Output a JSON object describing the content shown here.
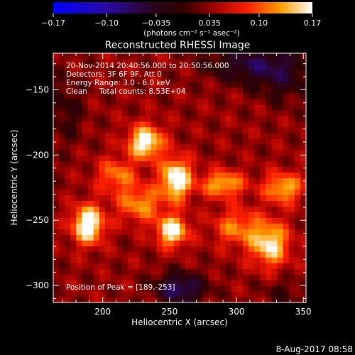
{
  "chart_data": {
    "type": "heatmap",
    "title": "Reconstructed RHESSI Image",
    "xlabel": "Heliocentric X (arcsec)",
    "ylabel": "Heliocentric Y (arcsec)",
    "xlim": [
      163,
      352
    ],
    "ylim": [
      -313,
      -122
    ],
    "x_ticks": [
      200,
      250,
      300,
      350
    ],
    "y_ticks": [
      -150,
      -200,
      -250,
      -300
    ],
    "x_tick_labels": [
      "200",
      "250",
      "300",
      "350"
    ],
    "y_tick_labels": [
      "−150",
      "−200",
      "−250",
      "−300"
    ],
    "colorbar": {
      "min": -0.17,
      "max": 0.17,
      "ticks": [
        -0.17,
        -0.1,
        -0.035,
        0.035,
        0.1,
        0.17
      ],
      "tick_labels": [
        "−0.17",
        "−0.10",
        "−0.035",
        "0.035",
        "0.10",
        "0.17"
      ],
      "unit_label": "(photons cm⁻² s⁻¹ asec⁻²)"
    },
    "annotations": [
      "20-Nov-2014 20:40:56.000 to 20:50:56.000",
      "Detectors: 3F 6F 9F, Att 0",
      "Energy Range: 3.0 - 6.0 keV",
      "Clean     Total counts: 8.53E+04"
    ],
    "peak_label": "Position of Peak = [189,-253]",
    "peak": [
      189,
      -253
    ],
    "sources": [
      {
        "x": 189,
        "y": -253,
        "amp": 0.17,
        "sx": 8,
        "sy": 10
      },
      {
        "x": 232,
        "y": -190,
        "amp": 0.15,
        "sx": 9,
        "sy": 9
      },
      {
        "x": 255,
        "y": -218,
        "amp": 0.16,
        "sx": 8,
        "sy": 11
      },
      {
        "x": 252,
        "y": -258,
        "amp": 0.15,
        "sx": 8,
        "sy": 8
      },
      {
        "x": 290,
        "y": -222,
        "amp": 0.11,
        "sx": 11,
        "sy": 7
      },
      {
        "x": 325,
        "y": -268,
        "amp": 0.13,
        "sx": 10,
        "sy": 12
      },
      {
        "x": 335,
        "y": -225,
        "amp": 0.11,
        "sx": 10,
        "sy": 8
      },
      {
        "x": 228,
        "y": -237,
        "amp": 0.09,
        "sx": 12,
        "sy": 10
      },
      {
        "x": 210,
        "y": -215,
        "amp": 0.08,
        "sx": 10,
        "sy": 9
      },
      {
        "x": 300,
        "y": -255,
        "amp": 0.08,
        "sx": 12,
        "sy": 10
      }
    ],
    "background": 0.035,
    "negative_regions": [
      {
        "x": 258,
        "y": -302,
        "amp": -0.11,
        "sx": 13,
        "sy": 8
      },
      {
        "x": 310,
        "y": -130,
        "amp": -0.08,
        "sx": 22,
        "sy": 10
      },
      {
        "x": 335,
        "y": -140,
        "amp": -0.05,
        "sx": 14,
        "sy": 14
      },
      {
        "x": 172,
        "y": -165,
        "amp": -0.04,
        "sx": 10,
        "sy": 18
      },
      {
        "x": 335,
        "y": -305,
        "amp": -0.03,
        "sx": 12,
        "sy": 8
      }
    ]
  },
  "footer": {
    "timestamp": "8-Aug-2017 08:58"
  }
}
